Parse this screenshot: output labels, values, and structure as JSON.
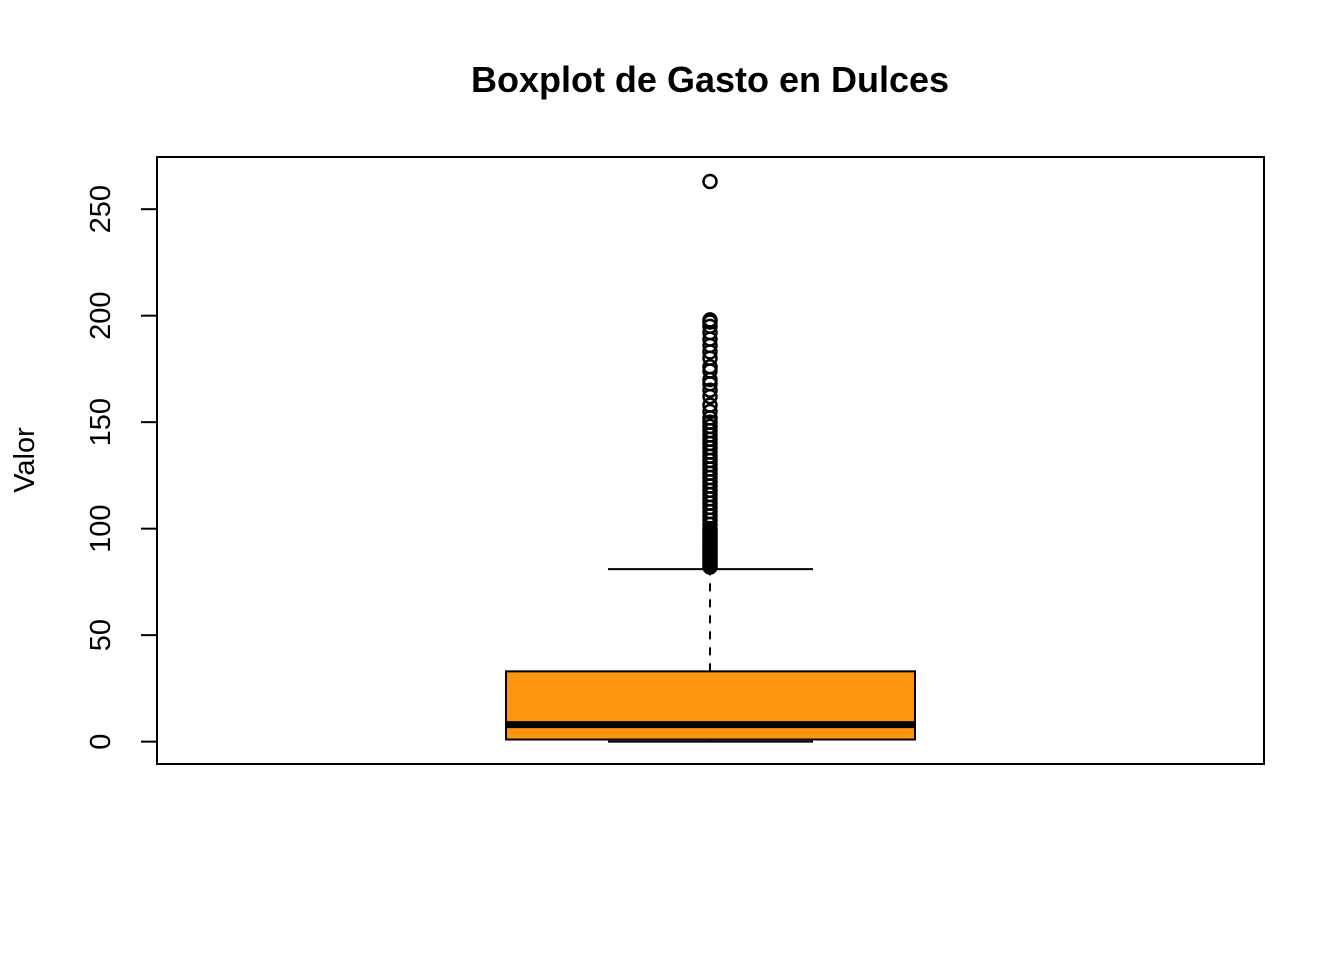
{
  "chart_data": {
    "type": "boxplot",
    "title": "Boxplot de Gasto en Dulces",
    "xlabel": "",
    "ylabel": "Valor",
    "ylim": [
      -10.5,
      274.5
    ],
    "yticks": [
      0,
      50,
      100,
      150,
      200,
      250
    ],
    "grid": false,
    "legend": "none",
    "box": {
      "min": 0,
      "q1": 1,
      "median": 8,
      "q3": 33,
      "whisker_low": 0,
      "whisker_high": 81,
      "fill_color": "#FF940E",
      "outliers": [
        82,
        83,
        84,
        85,
        86,
        87,
        88,
        89,
        90,
        91,
        92,
        93,
        94,
        95,
        96,
        97,
        98,
        99,
        100,
        102,
        104,
        106,
        108,
        110,
        112,
        114,
        116,
        118,
        120,
        122,
        124,
        126,
        128,
        130,
        132,
        134,
        136,
        138,
        140,
        142,
        144,
        146,
        148,
        150,
        152,
        155,
        158,
        162,
        165,
        168,
        170,
        174,
        176,
        180,
        183,
        186,
        189,
        192,
        195,
        197,
        198,
        263
      ]
    }
  }
}
